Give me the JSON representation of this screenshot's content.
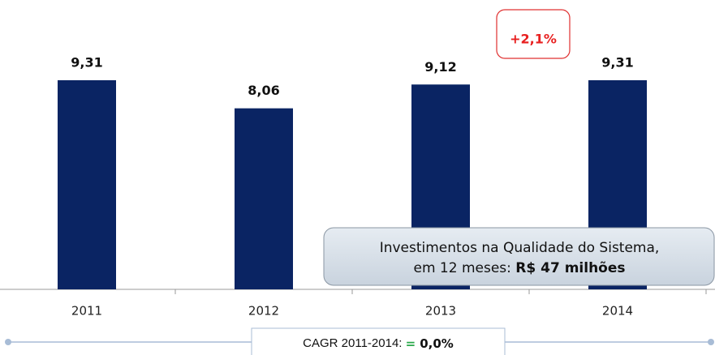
{
  "chart_data": {
    "type": "bar",
    "categories": [
      "2011",
      "2012",
      "2013",
      "2014"
    ],
    "values": [
      9.31,
      8.06,
      9.12,
      9.31
    ],
    "value_labels": [
      "9,31",
      "8,06",
      "9,12",
      "9,31"
    ],
    "color": "#0a2463",
    "annotations": {
      "growth": "+2,1%",
      "callout_line1": "Investimentos na Qualidade do Sistema,",
      "callout_line2": "em 12 meses: ",
      "callout_bold": "R$ 47 milhões",
      "cagr_label": "CAGR 2011-2014: ",
      "cagr_sign": "=",
      "cagr_value": "0,0%"
    }
  }
}
